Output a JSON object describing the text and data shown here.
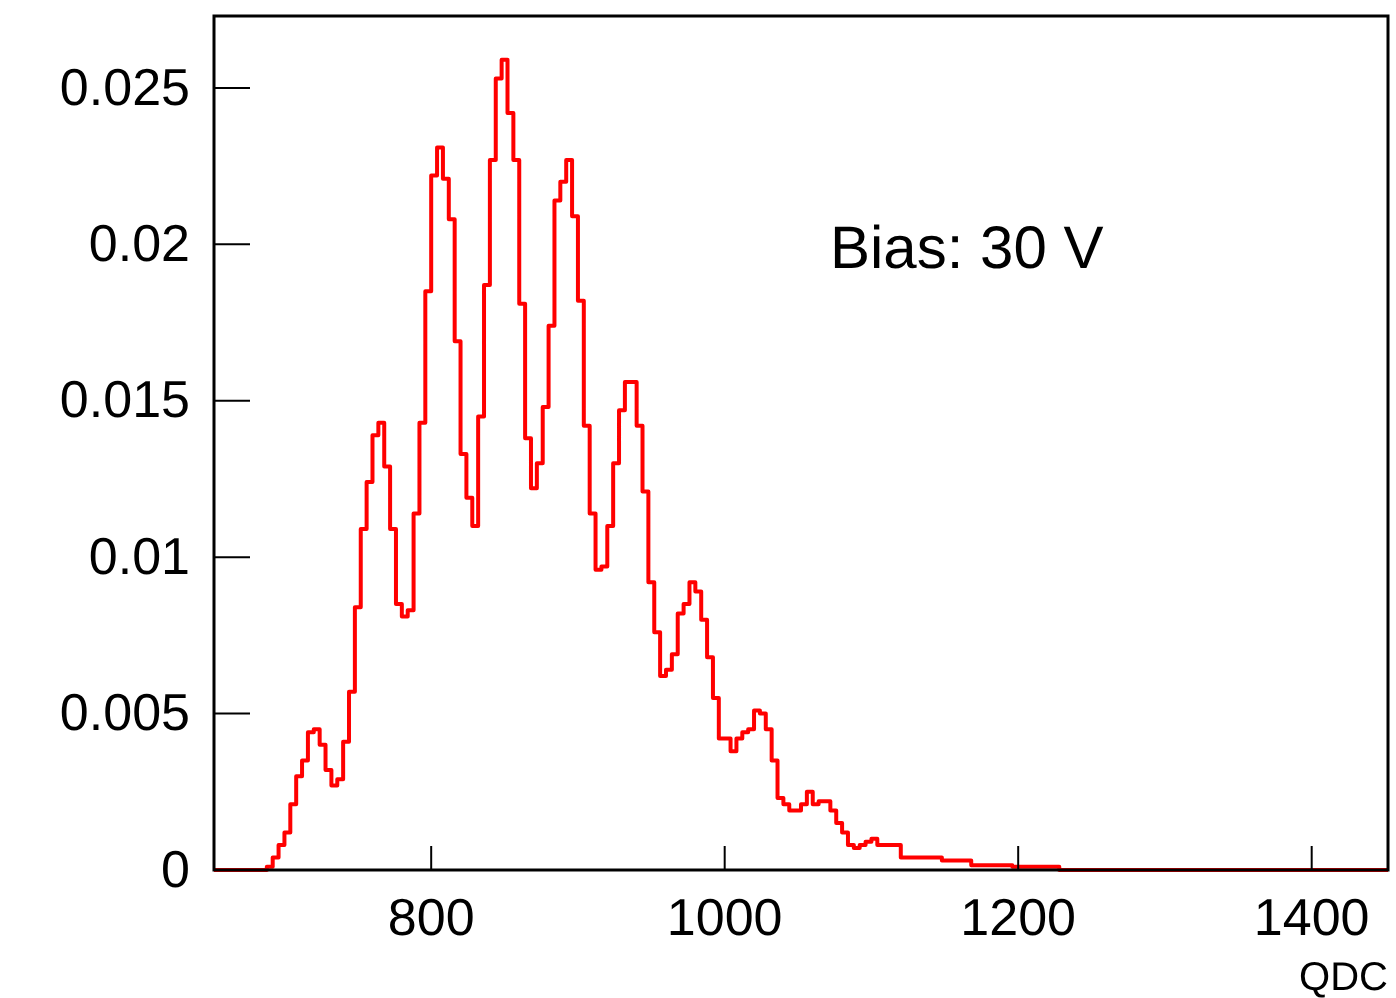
{
  "chart_data": {
    "type": "histogram",
    "xlabel": "QDC",
    "annotations": [
      "Bias: 30 V"
    ],
    "color": "#ff0000",
    "bins": [
      652,
      656,
      660,
      664,
      668,
      672,
      676,
      680,
      684,
      688,
      692,
      696,
      700,
      704,
      708,
      712,
      716,
      720,
      724,
      728,
      732,
      736,
      740,
      744,
      748,
      752,
      756,
      760,
      764,
      768,
      772,
      776,
      780,
      784,
      788,
      792,
      796,
      800,
      804,
      808,
      812,
      816,
      820,
      824,
      828,
      832,
      836,
      840,
      844,
      848,
      852,
      856,
      860,
      864,
      868,
      872,
      876,
      880,
      884,
      888,
      892,
      896,
      900,
      904,
      908,
      912,
      916,
      920,
      924,
      928,
      932,
      936,
      940,
      944,
      948,
      952,
      956,
      960,
      964,
      968,
      972,
      976,
      980,
      984,
      988,
      992,
      996,
      1000,
      1004,
      1008,
      1012,
      1016,
      1020,
      1024,
      1028,
      1032,
      1036,
      1040,
      1044,
      1048,
      1052,
      1056,
      1060,
      1064,
      1068,
      1072,
      1076,
      1080,
      1084,
      1088,
      1092,
      1096,
      1100,
      1104,
      1108,
      1112,
      1116,
      1120,
      1124,
      1128,
      1132,
      1136,
      1140,
      1144,
      1148,
      1152,
      1156,
      1160,
      1164,
      1168,
      1172,
      1176,
      1180,
      1184,
      1188,
      1192,
      1196,
      1200,
      1204,
      1208,
      1212,
      1216,
      1220,
      1224,
      1228,
      1232,
      1236,
      1240,
      1244,
      1248,
      1252,
      1256,
      1260,
      1264,
      1268,
      1272,
      1276,
      1280,
      1284,
      1288,
      1292,
      1296,
      1300,
      1304,
      1308,
      1312,
      1316,
      1320,
      1324,
      1328,
      1332,
      1336,
      1340,
      1344,
      1348,
      1352,
      1356,
      1360,
      1364,
      1368,
      1372,
      1376,
      1380,
      1384,
      1388,
      1392,
      1396,
      1400,
      1404,
      1408,
      1412,
      1416,
      1420,
      1424,
      1428,
      1432,
      1436,
      1440,
      1444,
      1448,
      1452
    ],
    "values": [
      0,
      0,
      0,
      0,
      0,
      0,
      0,
      0,
      0,
      0.0001,
      0.0004,
      0.0008,
      0.0012,
      0.0021,
      0.003,
      0.0035,
      0.0044,
      0.0045,
      0.004,
      0.0032,
      0.0027,
      0.0029,
      0.0041,
      0.0057,
      0.0084,
      0.0109,
      0.0124,
      0.0139,
      0.0143,
      0.0129,
      0.0109,
      0.0085,
      0.0081,
      0.0083,
      0.0114,
      0.0143,
      0.0185,
      0.0222,
      0.0231,
      0.0221,
      0.0208,
      0.0169,
      0.0133,
      0.0119,
      0.011,
      0.0145,
      0.0187,
      0.0227,
      0.0253,
      0.0259,
      0.0242,
      0.0227,
      0.0181,
      0.0138,
      0.0122,
      0.013,
      0.0148,
      0.0174,
      0.0214,
      0.022,
      0.0227,
      0.0209,
      0.0182,
      0.0142,
      0.0114,
      0.0096,
      0.0097,
      0.011,
      0.013,
      0.0147,
      0.0156,
      0.0156,
      0.0142,
      0.0121,
      0.0092,
      0.0076,
      0.0062,
      0.0064,
      0.0069,
      0.0082,
      0.0085,
      0.0092,
      0.0089,
      0.008,
      0.0068,
      0.0055,
      0.0042,
      0.0042,
      0.0038,
      0.0042,
      0.0044,
      0.0045,
      0.0051,
      0.005,
      0.0045,
      0.0035,
      0.0023,
      0.0021,
      0.0019,
      0.0019,
      0.0021,
      0.0025,
      0.0021,
      0.0022,
      0.0022,
      0.0019,
      0.0015,
      0.0012,
      0.0008,
      0.0007,
      0.0008,
      0.0009,
      0.001,
      0.0008,
      0.0008,
      0.0008,
      0.0008,
      0.0004,
      0.0004,
      0.0004,
      0.0004,
      0.0004,
      0.0004,
      0.0004,
      0.0003,
      0.0003,
      0.0003,
      0.0003,
      0.0003,
      0.00015,
      0.00015,
      0.00015,
      0.00015,
      0.00015,
      0.00015,
      0.00015,
      0.0001,
      0.0001,
      0.0001,
      0.0001,
      0.0001,
      0.0001,
      0.0001,
      0.0001,
      0,
      0,
      0,
      0,
      0,
      0,
      0,
      0,
      0,
      0,
      0,
      0,
      0,
      0,
      0,
      0,
      0,
      0,
      0,
      0,
      0,
      0,
      0,
      0,
      0,
      0,
      0,
      0,
      0,
      0,
      0,
      0,
      0,
      0,
      0,
      0,
      0,
      0,
      0,
      0,
      0,
      0,
      0,
      0,
      0,
      0,
      0,
      0,
      0,
      0,
      0,
      0,
      0,
      0,
      0,
      0
    ],
    "xlim": [
      652,
      1452
    ],
    "ylim": [
      0,
      0.0273
    ],
    "xticks": [
      800,
      1000,
      1200,
      1400
    ],
    "yticks": [
      0,
      0.005,
      0.01,
      0.015,
      0.02,
      0.025
    ]
  }
}
